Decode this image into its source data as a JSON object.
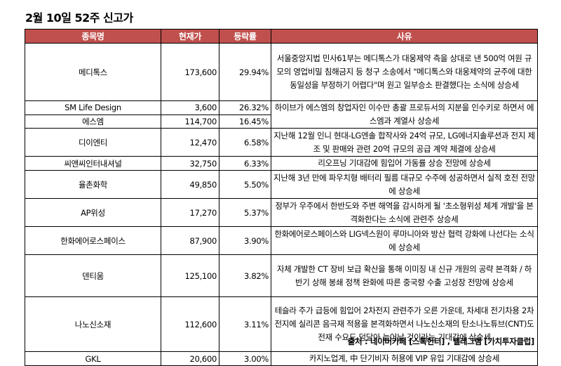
{
  "title": "2월 10일 52주 신고가",
  "headers": {
    "name": "종목명",
    "price": "현재가",
    "change": "등락률",
    "reason": "사유"
  },
  "rows": [
    {
      "name": "메디톡스",
      "price": "173,600",
      "change": "29.94%",
      "reason": "서울중앙지법 민사61부는 메디톡스가 대웅제약 측을 상대로 낸 500억 여원 규모의 영업비밀 침해금지 등 청구 소송에서 \"메디톡스와 대웅제약의 균주에 대한 동일성을 부정하기 어렵다\"며 원고 일부승소 판결했다는 소식에 상승세"
    },
    {
      "name": "SM Life Design",
      "price": "3,600",
      "change": "26.32%",
      "reason": "하이브가 에스엠의 창업자인 이수만 총괄 프로듀서의 지분을 인수키로 하면서 에스엠과 계열사 상승세"
    },
    {
      "name": "에스엠",
      "price": "114,700",
      "change": "16.45%",
      "reason": ""
    },
    {
      "name": "디이엔티",
      "price": "12,470",
      "change": "6.58%",
      "reason": "지난해 12월 인니 현대-LG엔솔 합작사와 24억 규모, LG에너지솔루션과 전지 제조 및 판매와 관련 20억 규모의 공급 계약 체결에 상승세"
    },
    {
      "name": "씨앤씨인터내셔널",
      "price": "32,750",
      "change": "6.33%",
      "reason": "리오프닝 기대감에 힘입어 가동률 상승 전망에 상승세"
    },
    {
      "name": "율촌화학",
      "price": "49,850",
      "change": "5.50%",
      "reason": "지난해 3년 만에 파우치형 배터리 필름 대규모 수주에 성공하면서 실적 호전 전망에 상승세"
    },
    {
      "name": "AP위성",
      "price": "17,270",
      "change": "5.37%",
      "reason": "정부가 우주에서 한반도와 주변 해역을 감시하게 될 '초소형위성 체계 개발'을 본격화한다는 소식에 관련주 상승세"
    },
    {
      "name": "한화에어로스페이스",
      "price": "87,900",
      "change": "3.90%",
      "reason": "한화에어로스페이스와 LIG넥스원이 루마니아와 방산 협력 강화에 나선다는 소식에 상승세"
    },
    {
      "name": "덴티움",
      "price": "125,100",
      "change": "3.82%",
      "reason": "자체 개발한 CT 장비 보급 확산을 통해 이미징 내 신규 개원의 공략 본격화 / 하반기 상해 봉쇄 정책 완화에 따른 중국향 수출 고성장 전망에 상승세"
    },
    {
      "name": "나노신소재",
      "price": "112,600",
      "change": "3.11%",
      "reason": "테슬라 주가 급등에 힘입어 2차전지 관련주가 오른 가운데, 차세대 전기차용 2차전지에 실리콘 음극재 적용을 본격화하면서 나노신소재의 탄소나노튜브(CNT)도전재 수요도 덩달아 늘어날 것이라는 기대감에 상승세"
    },
    {
      "name": "GKL",
      "price": "20,600",
      "change": "3.00%",
      "reason": "카지노업계, 中 단기비자 허용에 VIP 유입 기대감에 상승세"
    }
  ],
  "source": "출처 : 네이버카페 [스톡헌터] , 텔레그램 [가치투자클럽]",
  "colors": {
    "header_bg": "#c0504d",
    "header_text": "#ffffff"
  }
}
